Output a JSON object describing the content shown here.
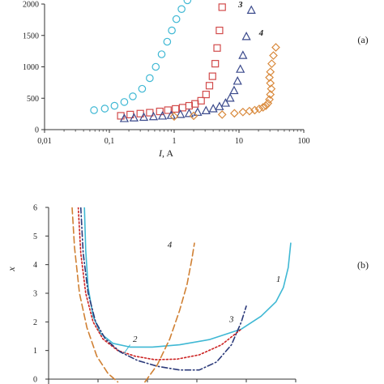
{
  "chart_data": [
    {
      "panel": "(a)",
      "type": "scatter",
      "x_scale": "log",
      "xlim": [
        0.01,
        100
      ],
      "ylim": [
        0,
        2000
      ],
      "x_ticks": [
        "0,01",
        "0,1",
        "1",
        "10",
        "100"
      ],
      "y_ticks": [
        "0",
        "500",
        "1000",
        "1500",
        "2000"
      ],
      "xlabel": "I, A",
      "ylabel": "",
      "grid": false,
      "series": [
        {
          "label": "",
          "marker": "circle",
          "color": "#3fb8d4",
          "x": [
            0.058,
            0.085,
            0.12,
            0.17,
            0.23,
            0.32,
            0.42,
            0.52,
            0.64,
            0.78,
            0.92,
            1.08,
            1.3,
            1.6
          ],
          "y": [
            310,
            335,
            380,
            440,
            530,
            650,
            820,
            1000,
            1200,
            1400,
            1580,
            1760,
            1920,
            2060
          ]
        },
        {
          "label": "",
          "marker": "square",
          "color": "#d24b4b",
          "x": [
            0.15,
            0.21,
            0.3,
            0.42,
            0.6,
            0.8,
            1.05,
            1.35,
            1.7,
            2.1,
            2.6,
            3.1,
            3.5,
            3.9,
            4.3,
            4.6,
            5.0,
            5.5
          ],
          "y": [
            220,
            240,
            255,
            270,
            290,
            310,
            330,
            350,
            380,
            410,
            460,
            560,
            700,
            850,
            1050,
            1300,
            1580,
            1950
          ]
        },
        {
          "label": "3",
          "marker": "triangle",
          "color": "#3b4a8c",
          "x": [
            0.17,
            0.24,
            0.34,
            0.48,
            0.66,
            0.9,
            1.25,
            1.7,
            2.3,
            3.1,
            4.0,
            5.0,
            6.2,
            7.3,
            8.4,
            9.5,
            10.5,
            11.5,
            13.0,
            15.5
          ],
          "y": [
            175,
            185,
            195,
            205,
            215,
            225,
            240,
            255,
            275,
            300,
            330,
            365,
            420,
            500,
            620,
            770,
            960,
            1180,
            1480,
            1900
          ]
        },
        {
          "label": "4",
          "marker": "diamond",
          "color": "#d98a3d",
          "x": [
            1.0,
            2.0,
            5.5,
            8.5,
            11.5,
            14.5,
            17.5,
            20.5,
            23.5,
            26.0,
            28.0,
            29.5,
            30.5,
            31.5,
            30.5,
            29.5,
            30.5,
            32.0,
            34.0,
            37.0
          ],
          "y": [
            210,
            220,
            240,
            260,
            280,
            295,
            310,
            330,
            355,
            380,
            420,
            480,
            560,
            650,
            740,
            830,
            920,
            1050,
            1180,
            1310
          ]
        }
      ],
      "curve_labels": [
        {
          "text": "3",
          "x": 10.5,
          "y": 1950
        },
        {
          "text": "4",
          "x": 22.0,
          "y": 1500
        }
      ]
    },
    {
      "panel": "(b)",
      "type": "line",
      "xlim": [
        0,
        10
      ],
      "ylim": [
        0,
        6
      ],
      "y_ticks": [
        "0",
        "1",
        "2",
        "3",
        "4",
        "5",
        "6"
      ],
      "xlabel": "",
      "ylabel": "x",
      "grid": false,
      "series": [
        {
          "label": "1",
          "style": "solid",
          "color": "#3fb8d4",
          "x": [
            1.45,
            1.5,
            1.6,
            1.8,
            2.1,
            2.6,
            3.3,
            4.2,
            5.3,
            6.5,
            7.8,
            8.6,
            9.2,
            9.5,
            9.7,
            9.8
          ],
          "y": [
            6.0,
            4.5,
            3.2,
            2.2,
            1.6,
            1.25,
            1.12,
            1.12,
            1.2,
            1.38,
            1.75,
            2.2,
            2.7,
            3.2,
            3.9,
            4.75
          ]
        },
        {
          "label": "2",
          "style": "dotted",
          "color": "#cc2222",
          "x": [
            1.2,
            1.3,
            1.5,
            1.8,
            2.2,
            2.8,
            3.5,
            4.3,
            5.2,
            6.1,
            7.0,
            7.8
          ],
          "y": [
            6.0,
            4.4,
            3.0,
            2.0,
            1.4,
            1.0,
            0.8,
            0.68,
            0.7,
            0.85,
            1.2,
            1.75
          ]
        },
        {
          "label": "3",
          "style": "dashdot",
          "color": "#2b3a7a",
          "x": [
            1.3,
            1.4,
            1.6,
            1.9,
            2.3,
            2.9,
            3.6,
            4.4,
            5.3,
            6.1,
            6.8,
            7.4,
            7.8,
            8.0
          ],
          "y": [
            6.0,
            4.4,
            3.0,
            2.0,
            1.4,
            0.95,
            0.65,
            0.45,
            0.32,
            0.32,
            0.6,
            1.2,
            2.0,
            2.55
          ]
        },
        {
          "label": "4",
          "style": "dashed",
          "color": "#d08033",
          "x": [
            0.95,
            1.05,
            1.25,
            1.55,
            1.95,
            2.4,
            2.8
          ],
          "y": [
            6.0,
            4.6,
            3.0,
            1.8,
            0.8,
            0.2,
            -0.1
          ]
        },
        {
          "label": "4",
          "style": "dashed",
          "color": "#d08033",
          "x": [
            3.9,
            4.4,
            4.9,
            5.3,
            5.6,
            5.8,
            5.9
          ],
          "y": [
            -0.1,
            0.5,
            1.4,
            2.4,
            3.3,
            4.2,
            4.75
          ]
        }
      ],
      "curve_labels": [
        {
          "text": "1",
          "x": 9.3,
          "y": 3.4
        },
        {
          "text": "2",
          "x": 3.5,
          "y": 1.3
        },
        {
          "text": "3",
          "x": 7.4,
          "y": 2.0
        },
        {
          "text": "4",
          "x": 4.9,
          "y": 4.6
        }
      ]
    }
  ]
}
